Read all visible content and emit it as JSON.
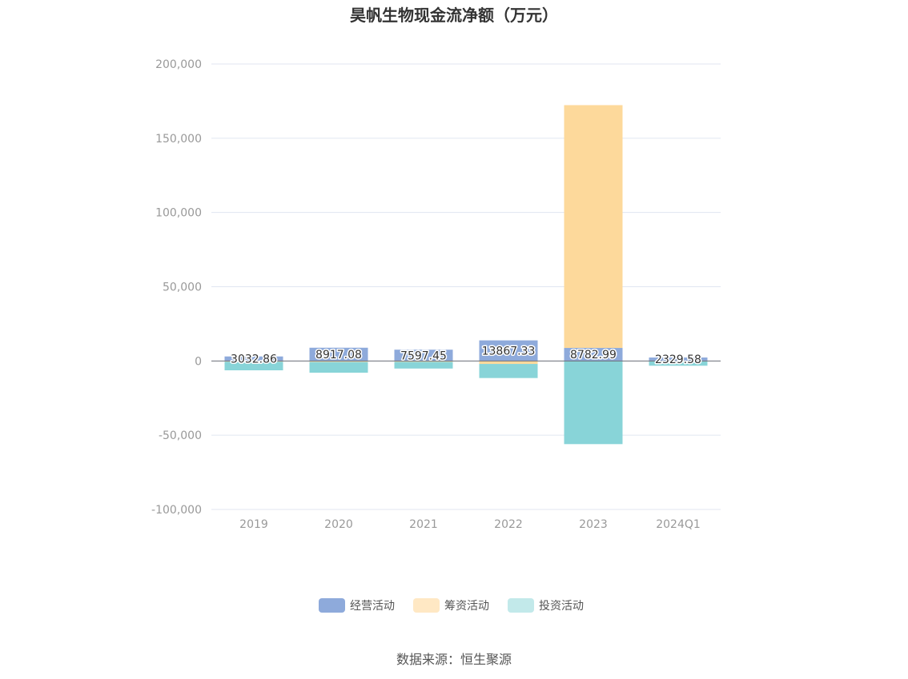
{
  "chart_data": {
    "type": "bar",
    "stacked": true,
    "title": "昊帆生物现金流净额（万元）",
    "categories": [
      "2019",
      "2020",
      "2021",
      "2022",
      "2023",
      "2024Q1"
    ],
    "series": [
      {
        "name": "经营活动",
        "color": "#8eaadb",
        "values": [
          3032.86,
          8917.08,
          7597.45,
          13867.33,
          8782.99,
          2329.58
        ]
      },
      {
        "name": "筹资活动",
        "color": "#fdd99b",
        "values": [
          -500,
          -700,
          -600,
          -2000,
          163500,
          -200
        ]
      },
      {
        "name": "投资活动",
        "color": "#88d4d8",
        "values": [
          -5800,
          -7200,
          -4500,
          -9500,
          -56000,
          -3000
        ]
      }
    ],
    "data_labels": [
      "3032.86",
      "8917.08",
      "7597.45",
      "13867.33",
      "8782.99",
      "2329.58"
    ],
    "ylim": [
      -100000,
      200000
    ],
    "yticks": [
      -100000,
      -50000,
      0,
      50000,
      100000,
      150000,
      200000
    ],
    "ytick_labels": [
      "-100,000",
      "-50,000",
      "0",
      "50,000",
      "100,000",
      "150,000",
      "200,000"
    ],
    "grid": true,
    "legend_position": "bottom",
    "legend_colors": [
      "#8eaadb",
      "#ffe8c4",
      "#c2e9ea"
    ]
  },
  "source": "数据来源：恒生聚源"
}
